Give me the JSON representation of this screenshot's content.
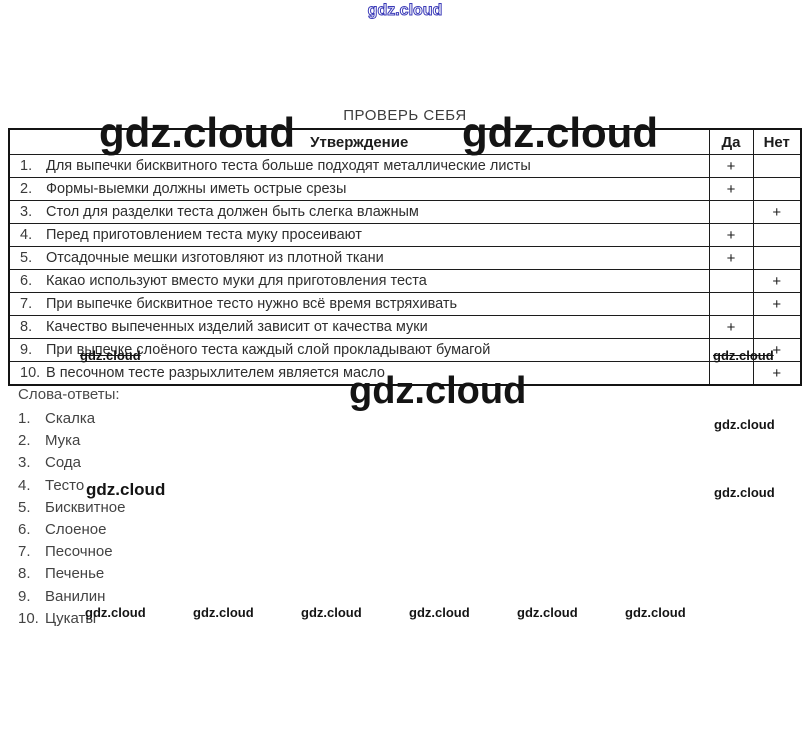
{
  "watermark": {
    "text": "gdz.cloud"
  },
  "title": "ПРОВЕРЬ СЕБЯ",
  "table": {
    "headers": {
      "statement": "Утверждение",
      "yes": "Да",
      "no": "Нет"
    },
    "rows": [
      {
        "num": "1.",
        "text": "Для выпечки бисквитного теста больше подходят металлические листы",
        "yes": "+",
        "no": ""
      },
      {
        "num": "2.",
        "text": "Формы-выемки должны иметь острые срезы",
        "yes": "+",
        "no": ""
      },
      {
        "num": "3.",
        "text": "Стол для разделки теста должен быть слегка влажным",
        "yes": "",
        "no": "+"
      },
      {
        "num": "4.",
        "text": "Перед приготовлением теста муку просеивают",
        "yes": "+",
        "no": ""
      },
      {
        "num": "5.",
        "text": "Отсадочные мешки изготовляют из плотной ткани",
        "yes": "+",
        "no": ""
      },
      {
        "num": "6.",
        "text": "Какао используют вместо муки для приготовления теста",
        "yes": "",
        "no": "+"
      },
      {
        "num": "7.",
        "text": "При выпечке бисквитное тесто нужно всё время встряхивать",
        "yes": "",
        "no": "+"
      },
      {
        "num": "8.",
        "text": "Качество выпеченных изделий зависит от качества муки",
        "yes": "+",
        "no": ""
      },
      {
        "num": "9.",
        "text": "При выпечке слоёного теста каждый слой прокладывают бумагой",
        "yes": "",
        "no": "+"
      },
      {
        "num": "10.",
        "text": "В песочном тесте разрыхлителем является масло",
        "yes": "",
        "no": "+"
      }
    ]
  },
  "answers": {
    "label": "Слова-ответы:",
    "items": [
      {
        "num": "1.",
        "text": "Скалка"
      },
      {
        "num": "2.",
        "text": "Мука"
      },
      {
        "num": "3.",
        "text": "Сода"
      },
      {
        "num": "4.",
        "text": "Тесто"
      },
      {
        "num": "5.",
        "text": "Бисквитное"
      },
      {
        "num": "6.",
        "text": "Слоеное"
      },
      {
        "num": "7.",
        "text": "Песочное"
      },
      {
        "num": "8.",
        "text": "Печенье"
      },
      {
        "num": "9.",
        "text": "Ванилин"
      },
      {
        "num": "10.",
        "text": "Цукаты"
      }
    ]
  }
}
